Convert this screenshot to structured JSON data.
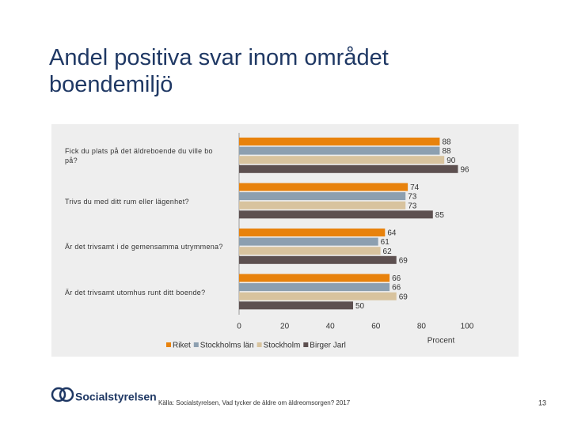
{
  "title": "Andel positiva svar inom området boendemiljö",
  "footer": {
    "brand": "Socialstyrelsen",
    "source": "Källa: Socialstyrelsen, Vad tycker de äldre om äldreomsorgen? 2017",
    "page": "13"
  },
  "chart_data": {
    "type": "bar",
    "orientation": "horizontal",
    "categories": [
      "Fick du plats på det äldreboende du ville bo på?",
      "Trivs du med ditt rum eller lägenhet?",
      "Är det trivsamt i de gemensamma utrymmena?",
      "Är det trivsamt utomhus runt ditt boende?"
    ],
    "series": [
      {
        "name": "Riket",
        "color": "#e8820c",
        "values": [
          88,
          74,
          64,
          66
        ]
      },
      {
        "name": "Stockholms län",
        "color": "#8c9fb0",
        "values": [
          88,
          73,
          61,
          66
        ]
      },
      {
        "name": "Stockholm",
        "color": "#d8c39e",
        "values": [
          90,
          73,
          62,
          69
        ]
      },
      {
        "name": "Birger Jarl",
        "color": "#5d5050",
        "values": [
          96,
          85,
          69,
          50
        ]
      }
    ],
    "xlim": [
      0,
      100
    ],
    "xticks": [
      0,
      20,
      40,
      60,
      80,
      100
    ],
    "xlabel": "Procent"
  }
}
